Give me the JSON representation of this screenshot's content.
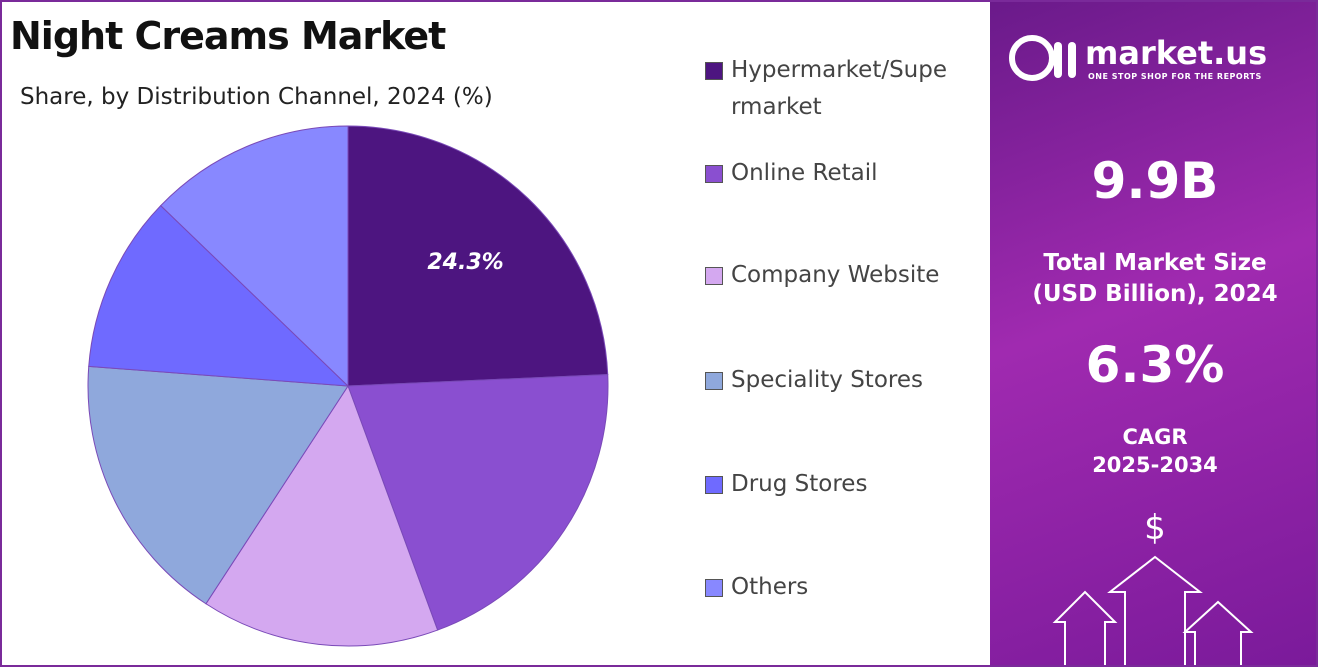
{
  "chart_data": {
    "type": "pie",
    "title": "Night Creams Market",
    "subtitle": "Share, by Distribution Channel, 2024 (%)",
    "categories": [
      "Hypermarket/Supermarket",
      "Online Retail",
      "Company Website",
      "Speciality Stores",
      "Drug Stores",
      "Others"
    ],
    "values": [
      24.3,
      20.1,
      14.8,
      17.0,
      11.0,
      12.8
    ],
    "value_labels": [
      "24.3%",
      null,
      null,
      null,
      null,
      null
    ],
    "colors": [
      "#4d1580",
      "#8a4fd0",
      "#d4a8f0",
      "#8fa8dc",
      "#6f6aff",
      "#8888ff"
    ]
  },
  "panel": {
    "brand": "market.us",
    "tagline": "ONE STOP SHOP FOR THE REPORTS",
    "market_size": "9.9B",
    "market_size_label": "Total Market Size (USD Billion), 2024",
    "cagr": "6.3%",
    "cagr_label": "CAGR",
    "cagr_period": "2025-2034"
  }
}
